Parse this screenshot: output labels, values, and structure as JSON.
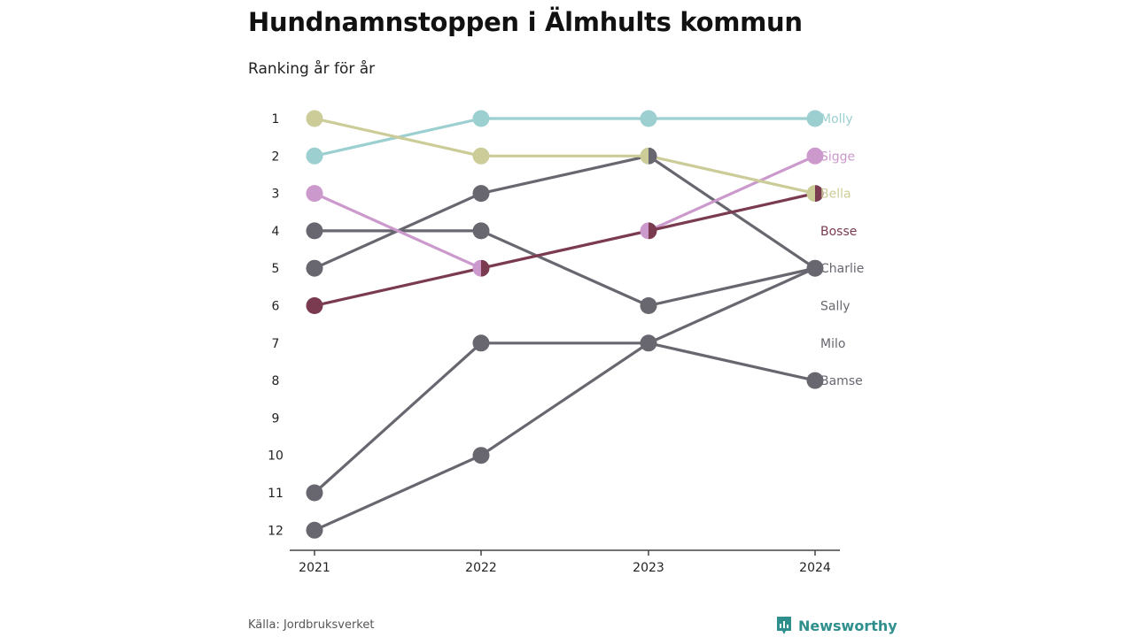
{
  "title": "Hundnamnstoppen i Älmhults kommun",
  "subtitle": "Ranking år för år",
  "source": "Källa: Jordbruksverket",
  "brand": "Newsworthy",
  "colors": {
    "brand": "#2f8f8d",
    "axis": "#444444"
  },
  "chart_data": {
    "type": "line",
    "x": [
      2021,
      2022,
      2023,
      2024
    ],
    "y_ticks": [
      1,
      2,
      3,
      4,
      5,
      6,
      7,
      8,
      9,
      10,
      11,
      12
    ],
    "ylim": [
      1,
      12
    ],
    "y_inverted": true,
    "series": [
      {
        "name": "Molly",
        "color": "#9ccfd0",
        "values": [
          2,
          1,
          1,
          1
        ]
      },
      {
        "name": "Sigge",
        "color": "#cc99cc",
        "values": [
          3,
          5,
          4,
          2
        ]
      },
      {
        "name": "Bella",
        "color": "#cccc99",
        "values": [
          1,
          2,
          2,
          3
        ]
      },
      {
        "name": "Bosse",
        "color": "#7a3a50",
        "values": [
          6,
          5,
          4,
          3
        ]
      },
      {
        "name": "Charlie",
        "color": "#68676f",
        "values": [
          5,
          3,
          2,
          5
        ]
      },
      {
        "name": "Sally",
        "color": "#68676f",
        "values": [
          4,
          4,
          6,
          5
        ]
      },
      {
        "name": "Milo",
        "color": "#68676f",
        "values": [
          12,
          10,
          7,
          5
        ]
      },
      {
        "name": "Bamse",
        "color": "#68676f",
        "values": [
          11,
          7,
          7,
          8
        ]
      }
    ]
  }
}
